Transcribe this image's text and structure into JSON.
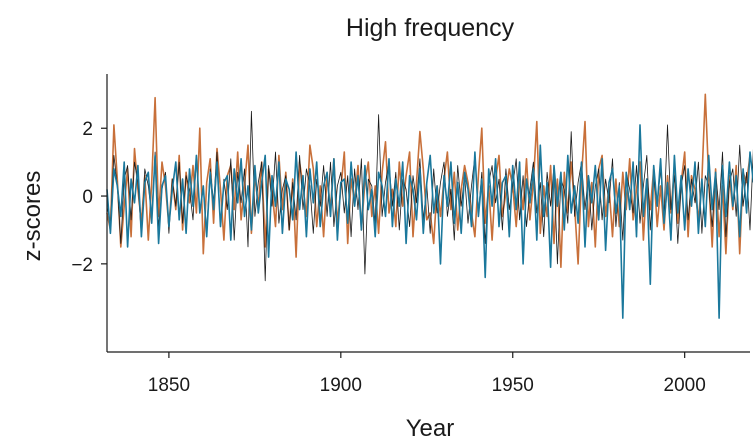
{
  "chart_data": {
    "type": "line",
    "title": "High frequency",
    "xlabel": "Year",
    "ylabel": "z-scores",
    "xlim": [
      1832,
      2019
    ],
    "ylim": [
      -4.6,
      3.6
    ],
    "xticks": [
      1850,
      1900,
      1950,
      2000
    ],
    "yticks": [
      2,
      0,
      -2
    ],
    "ytick_labels": [
      "2",
      "0",
      "−2"
    ],
    "grid": false,
    "x_start": 1832,
    "series": [
      {
        "color": "#c8703a",
        "width": 1.6,
        "values": [
          -0.5,
          -1.0,
          2.1,
          0.5,
          -1.5,
          -0.3,
          0.8,
          -1.2,
          1.4,
          0.2,
          -0.8,
          0.6,
          -1.3,
          0.4,
          2.9,
          -0.6,
          1.0,
          0.3,
          -0.9,
          0.5,
          -0.4,
          1.2,
          -1.0,
          0.7,
          -0.2,
          0.9,
          -0.5,
          2.0,
          -1.7,
          0.4,
          1.1,
          -0.8,
          1.4,
          0.2,
          -1.3,
          0.6,
          0.9,
          -0.4,
          1.3,
          -0.7,
          0.3,
          1.5,
          -1.1,
          0.6,
          -0.3,
          1.0,
          -1.5,
          0.8,
          0.2,
          -0.9,
          1.2,
          -0.4,
          0.7,
          -1.0,
          0.5,
          -1.8,
          1.0,
          0.3,
          -0.6,
          1.5,
          0.8,
          -0.9,
          0.3,
          -1.2,
          0.6,
          -0.4,
          1.1,
          -0.8,
          0.2,
          1.3,
          -1.4,
          0.5,
          -0.2,
          0.9,
          -1.0,
          0.4,
          1.0,
          -0.6,
          0.3,
          -1.1,
          0.7,
          1.6,
          -0.5,
          0.2,
          -0.9,
          1.0,
          -0.3,
          0.6,
          1.3,
          -1.2,
          0.4,
          1.9,
          0.8,
          -0.7,
          -0.5,
          -1.4,
          0.3,
          -0.6,
          0.5,
          1.3,
          -0.4,
          0.7,
          -1.0,
          0.2,
          0.9,
          0.4,
          -0.5,
          -1.2,
          0.6,
          2.0,
          -0.8,
          0.3,
          -1.3,
          0.5,
          1.2,
          -0.6,
          0.1,
          0.8,
          0.3,
          -0.9,
          0.5,
          -0.4,
          1.1,
          -0.7,
          0.4,
          2.2,
          -1.1,
          0.3,
          -0.6,
          0.9,
          -1.4,
          0.5,
          -2.1,
          0.7,
          -0.5,
          1.0,
          -0.3,
          -2.0,
          0.6,
          2.2,
          -0.9,
          0.4,
          -1.5,
          0.8,
          1.2,
          -0.6,
          0.3,
          -1.2,
          0.5,
          -0.9,
          0.7,
          -0.4,
          1.1,
          -0.7,
          0.2,
          1.0,
          -1.3,
          0.5,
          -0.4,
          0.8,
          -0.9,
          0.3,
          -1.0,
          0.6,
          -0.5,
          0.9,
          -0.8,
          0.4,
          1.3,
          -1.2,
          0.6,
          0.2,
          -0.7,
          0.5,
          3.0,
          0.5,
          -1.5,
          0.8,
          -1.2,
          0.3,
          -1.7,
          0.6,
          -0.4,
          0.9,
          -1.7,
          0.7,
          0.4,
          1.2
        ]
      },
      {
        "color": "#1a1a1a",
        "width": 0.8,
        "values": [
          -0.3,
          -0.8,
          1.2,
          0.3,
          -1.4,
          0.5,
          0.9,
          -0.7,
          1.0,
          0.4,
          -1.2,
          0.8,
          0.3,
          -0.6,
          1.3,
          -0.9,
          0.2,
          0.7,
          -1.1,
          0.5,
          -0.3,
          1.0,
          -0.8,
          0.6,
          0.2,
          -0.7,
          1.1,
          -0.5,
          0.3,
          -1.0,
          0.8,
          -0.2,
          1.3,
          -0.9,
          0.5,
          -0.4,
          1.1,
          -1.3,
          0.7,
          -0.2,
          0.8,
          -1.5,
          2.5,
          -0.6,
          0.4,
          1.0,
          -2.5,
          0.9,
          -0.3,
          1.3,
          -0.8,
          0.2,
          0.6,
          -1.0,
          0.4,
          -0.7,
          1.2,
          -0.4,
          0.8,
          0.3,
          -1.1,
          0.5,
          -0.3,
          0.9,
          -0.6,
          1.0,
          -0.9,
          0.3,
          0.7,
          -0.5,
          0.6,
          -1.2,
          0.8,
          -0.4,
          1.1,
          -2.3,
          0.5,
          0.3,
          -0.8,
          2.4,
          -0.6,
          0.4,
          1.0,
          -0.3,
          0.7,
          -1.0,
          0.5,
          0.2,
          -0.9,
          0.6,
          -0.2,
          1.1,
          -0.7,
          0.3,
          -1.1,
          0.8,
          -0.5,
          0.4,
          1.0,
          -0.6,
          0.2,
          -1.3,
          0.9,
          -0.3,
          0.6,
          -0.8,
          0.3,
          1.2,
          -0.5,
          0.7,
          -1.4,
          0.4,
          0.9,
          -0.2,
          0.5,
          -1.0,
          0.8,
          -0.4,
          0.3,
          1.1,
          -0.7,
          0.6,
          -0.9,
          0.2,
          1.0,
          -0.5,
          0.4,
          -1.2,
          0.7,
          -0.3,
          0.9,
          -2.0,
          0.5,
          0.2,
          -0.8,
          1.9,
          -0.6,
          0.4,
          1.0,
          -0.4,
          0.6,
          -1.0,
          0.3,
          0.8,
          -0.7,
          0.5,
          -0.2,
          1.1,
          -0.9,
          0.4,
          -1.3,
          0.7,
          0.2,
          -0.5,
          0.9,
          -0.8,
          0.3,
          1.2,
          -1.0,
          0.5,
          -0.3,
          0.8,
          -0.6,
          2.1,
          -0.4,
          0.6,
          -1.4,
          0.3,
          0.9,
          -0.7,
          0.5,
          -0.2,
          1.0,
          -1.1,
          0.6,
          0.3,
          -0.9,
          0.7,
          -0.4,
          1.3,
          -1.2,
          0.4,
          0.8,
          -0.6,
          1.5,
          -0.3,
          0.7,
          -1.0,
          1.4,
          0.5,
          1.0
        ]
      },
      {
        "color": "#1b789c",
        "width": 1.6,
        "values": [
          0.2,
          -1.1,
          0.8,
          0.3,
          -0.6,
          1.0,
          -1.5,
          0.5,
          -0.2,
          0.9,
          -1.2,
          0.4,
          0.7,
          -0.8,
          1.2,
          -1.4,
          0.3,
          0.6,
          -0.9,
          0.2,
          1.0,
          -0.7,
          0.5,
          -1.1,
          0.8,
          -0.3,
          1.2,
          -0.5,
          0.3,
          -1.2,
          0.7,
          -0.4,
          1.0,
          -0.9,
          0.4,
          0.6,
          -1.3,
          0.8,
          -0.2,
          1.1,
          -0.6,
          0.3,
          -1.0,
          0.9,
          -0.5,
          0.4,
          1.2,
          -1.8,
          0.6,
          -0.3,
          1.0,
          -1.1,
          0.5,
          0.2,
          -0.7,
          1.3,
          -0.4,
          0.6,
          -1.2,
          0.8,
          -0.2,
          1.0,
          -0.9,
          0.3,
          0.7,
          -0.6,
          1.1,
          -1.3,
          0.4,
          0.5,
          -0.8,
          1.0,
          -0.3,
          0.6,
          -1.0,
          0.9,
          -0.4,
          0.2,
          -1.2,
          0.7,
          0.3,
          -0.6,
          1.1,
          -0.9,
          0.5,
          -0.3,
          1.0,
          -1.4,
          0.6,
          0.2,
          -0.7,
          0.8,
          -1.1,
          0.4,
          1.2,
          -0.5,
          0.3,
          -2.0,
          0.6,
          -0.3,
          1.0,
          -0.8,
          0.4,
          -1.1,
          0.7,
          0.2,
          -0.9,
          1.3,
          -0.6,
          0.5,
          -2.4,
          0.8,
          -0.3,
          1.1,
          -0.9,
          0.4,
          0.6,
          -1.2,
          0.9,
          -0.4,
          1.0,
          -2.0,
          0.5,
          -0.2,
          0.8,
          -1.3,
          1.5,
          -0.6,
          0.4,
          -2.1,
          0.9,
          -0.3,
          0.7,
          -1.0,
          1.2,
          -0.5,
          0.3,
          -0.8,
          1.0,
          -1.5,
          0.6,
          -0.2,
          0.9,
          -0.7,
          1.1,
          -1.6,
          0.4,
          0.8,
          -0.5,
          0.3,
          -3.6,
          0.7,
          -0.4,
          1.0,
          -1.2,
          2.1,
          -0.6,
          0.5,
          -2.6,
          0.9,
          -0.3,
          1.1,
          -0.8,
          0.4,
          -1.3,
          1.2,
          -0.5,
          0.6,
          -1.0,
          0.8,
          -0.3,
          1.0,
          -1.1,
          0.5,
          -0.9,
          1.2,
          -0.4,
          0.7,
          -3.6,
          0.9,
          -0.6,
          1.0,
          -0.3,
          0.6,
          -1.2,
          0.8,
          -0.5,
          1.3,
          0.4
        ]
      }
    ]
  }
}
